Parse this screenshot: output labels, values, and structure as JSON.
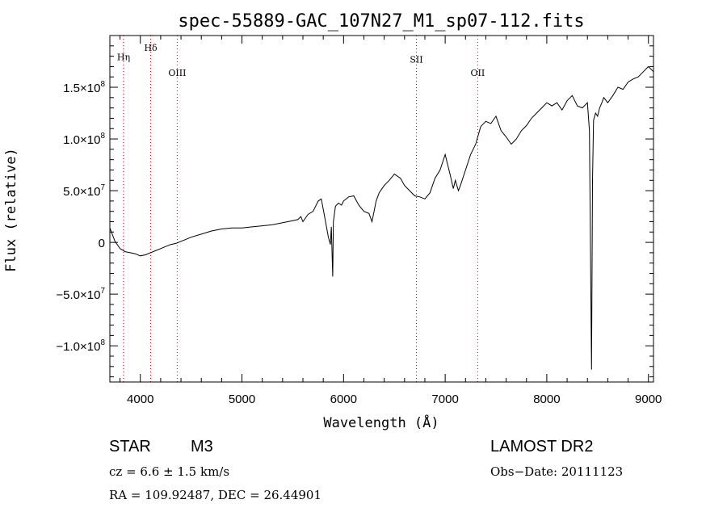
{
  "chart_data": {
    "type": "line",
    "title": "spec-55889-GAC_107N27_M1_sp07-112.fits",
    "xlabel": "Wavelength (Å)",
    "ylabel": "Flux (relative)",
    "xlim": [
      3700,
      9050
    ],
    "ylim": [
      -135000000,
      200000000
    ],
    "x_ticks": [
      {
        "value": 4000,
        "label": "4000"
      },
      {
        "value": 5000,
        "label": "5000"
      },
      {
        "value": 6000,
        "label": "6000"
      },
      {
        "value": 7000,
        "label": "7000"
      },
      {
        "value": 8000,
        "label": "8000"
      },
      {
        "value": 9000,
        "label": "9000"
      }
    ],
    "y_ticks": [
      {
        "value": -100000000,
        "mant": "−1.0×10",
        "exp": "8"
      },
      {
        "value": -50000000,
        "mant": "−5.0×10",
        "exp": "7"
      },
      {
        "value": 0,
        "mant": "0",
        "exp": ""
      },
      {
        "value": 50000000,
        "mant": "5.0×10",
        "exp": "7"
      },
      {
        "value": 100000000,
        "mant": "1.0×10",
        "exp": "8"
      },
      {
        "value": 150000000,
        "mant": "1.5×10",
        "exp": "8"
      }
    ],
    "lines": [
      {
        "name": "Hη",
        "wavelength": 3835,
        "label_y": 176000000
      },
      {
        "name": "Hδ",
        "wavelength": 4102,
        "label_y": 185000000
      },
      {
        "name": "OIII",
        "wavelength": 4363,
        "label_y": 161000000
      },
      {
        "name": "SII",
        "wavelength": 6717,
        "label_y": 174000000
      },
      {
        "name": "OII",
        "wavelength": 7320,
        "label_y": 161000000
      }
    ],
    "series": [
      {
        "x": [
          3700,
          3750,
          3800,
          3850,
          3900,
          3950,
          4000,
          4050,
          4100,
          4150,
          4200,
          4250,
          4300,
          4350,
          4400,
          4450,
          4500,
          4600,
          4700,
          4800,
          4900,
          5000,
          5100,
          5200,
          5300,
          5400,
          5500,
          5550,
          5580,
          5600,
          5650,
          5700,
          5750,
          5780,
          5800,
          5850,
          5870,
          5880,
          5893,
          5900,
          5920,
          5950,
          5980,
          6000,
          6050,
          6100,
          6150,
          6200,
          6250,
          6280,
          6300,
          6320,
          6350,
          6400,
          6450,
          6500,
          6560,
          6600,
          6650,
          6700,
          6750,
          6800,
          6850,
          6900,
          6950,
          7000,
          7050,
          7080,
          7100,
          7130,
          7150,
          7200,
          7250,
          7300,
          7350,
          7400,
          7450,
          7500,
          7550,
          7600,
          7650,
          7700,
          7750,
          7800,
          7850,
          7900,
          7950,
          8000,
          8050,
          8100,
          8150,
          8200,
          8250,
          8300,
          8350,
          8400,
          8420,
          8440,
          8450,
          8460,
          8480,
          8500,
          8520,
          8542,
          8560,
          8600,
          8650,
          8700,
          8750,
          8800,
          8850,
          8900,
          8950,
          9000,
          9050
        ],
        "y": [
          14000000,
          1000000,
          -6000000,
          -9000000,
          -10000000,
          -11000000,
          -13000000,
          -12000000,
          -10000000,
          -8000000,
          -6000000,
          -4000000,
          -2000000,
          -1000000,
          1000000,
          3000000,
          5000000,
          8000000,
          11000000,
          13000000,
          14000000,
          14000000,
          15000000,
          16000000,
          17000000,
          19000000,
          21000000,
          22000000,
          25000000,
          20000000,
          27000000,
          30000000,
          40000000,
          42000000,
          32000000,
          5000000,
          -2000000,
          15000000,
          -33000000,
          20000000,
          35000000,
          38000000,
          36000000,
          40000000,
          44000000,
          45000000,
          36000000,
          30000000,
          28000000,
          20000000,
          30000000,
          40000000,
          48000000,
          55000000,
          60000000,
          66000000,
          62000000,
          55000000,
          50000000,
          45000000,
          44000000,
          42000000,
          48000000,
          62000000,
          70000000,
          85000000,
          65000000,
          52000000,
          60000000,
          50000000,
          55000000,
          70000000,
          85000000,
          95000000,
          112000000,
          117000000,
          115000000,
          122000000,
          108000000,
          102000000,
          95000000,
          100000000,
          108000000,
          113000000,
          120000000,
          125000000,
          130000000,
          135000000,
          132000000,
          135000000,
          128000000,
          137000000,
          142000000,
          132000000,
          130000000,
          135000000,
          108000000,
          -123000000,
          60000000,
          118000000,
          125000000,
          122000000,
          130000000,
          135000000,
          140000000,
          135000000,
          142000000,
          150000000,
          148000000,
          155000000,
          158000000,
          160000000,
          165000000,
          170000000,
          165000000
        ]
      }
    ]
  },
  "info": {
    "object_class": "STAR",
    "subclass": "M3",
    "survey": "LAMOST DR2",
    "cz": "cz = 6.6 ± 1.5 km/s",
    "obs_date": "Obs−Date: 20111123",
    "coords": "RA = 109.92487, DEC =  26.44901"
  }
}
